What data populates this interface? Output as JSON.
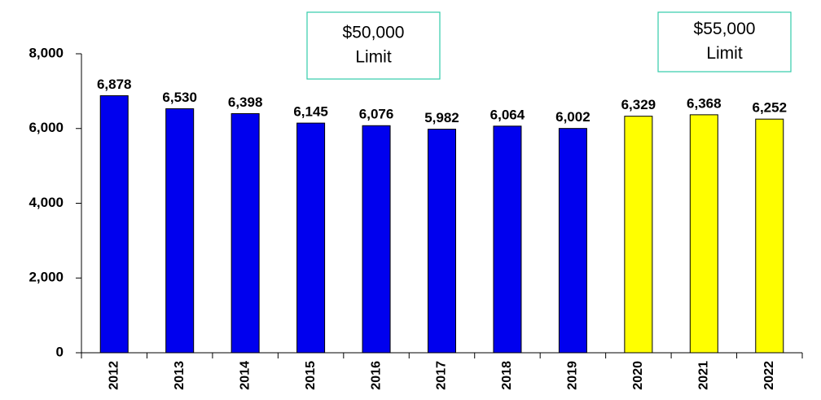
{
  "chart_data": {
    "type": "bar",
    "categories": [
      "2012",
      "2013",
      "2014",
      "2015",
      "2016",
      "2017",
      "2018",
      "2019",
      "2020",
      "2021",
      "2022"
    ],
    "values": [
      6878,
      6530,
      6398,
      6145,
      6076,
      5982,
      6064,
      6002,
      6329,
      6368,
      6252
    ],
    "value_labels": [
      "6,878",
      "6,530",
      "6,398",
      "6,145",
      "6,076",
      "5,982",
      "6,064",
      "6,002",
      "6,329",
      "6,368",
      "6,252"
    ],
    "colors": [
      "#0000ee",
      "#0000ee",
      "#0000ee",
      "#0000ee",
      "#0000ee",
      "#0000ee",
      "#0000ee",
      "#0000ee",
      "#ffff00",
      "#ffff00",
      "#ffff00"
    ],
    "ylim": [
      0,
      8000
    ],
    "yticks": [
      0,
      {
        "value": 2000,
        "label": "2,000"
      },
      {
        "value": 4000,
        "label": "4,000"
      },
      {
        "value": 6000,
        "label": "6,000"
      },
      {
        "value": 8000,
        "label": "8,000"
      }
    ],
    "grid": false,
    "annotations": [
      {
        "lines": [
          "$50,000",
          "Limit"
        ]
      },
      {
        "lines": [
          "$55,000",
          "Limit"
        ]
      }
    ]
  }
}
